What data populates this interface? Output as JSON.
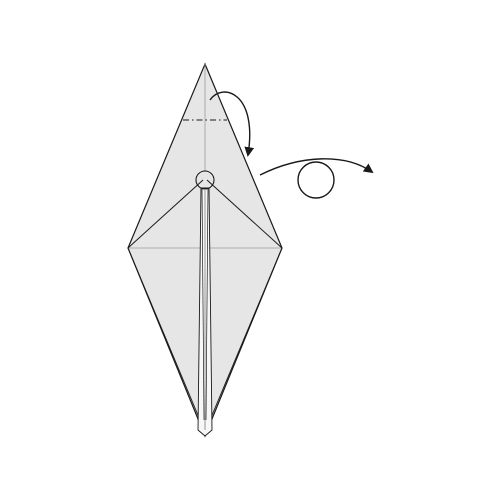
{
  "diagram": {
    "steps": [
      {
        "action": "valley-fold-tip-down",
        "icon": "curved-fold-arrow-icon"
      },
      {
        "action": "turn-over",
        "icon": "turn-over-arrow-icon"
      }
    ],
    "colors": {
      "paper": "#e6e6e6",
      "paper_inner": "#f7f7f7",
      "line": "#1a1a1a",
      "crease": "#9a9a9a"
    }
  }
}
